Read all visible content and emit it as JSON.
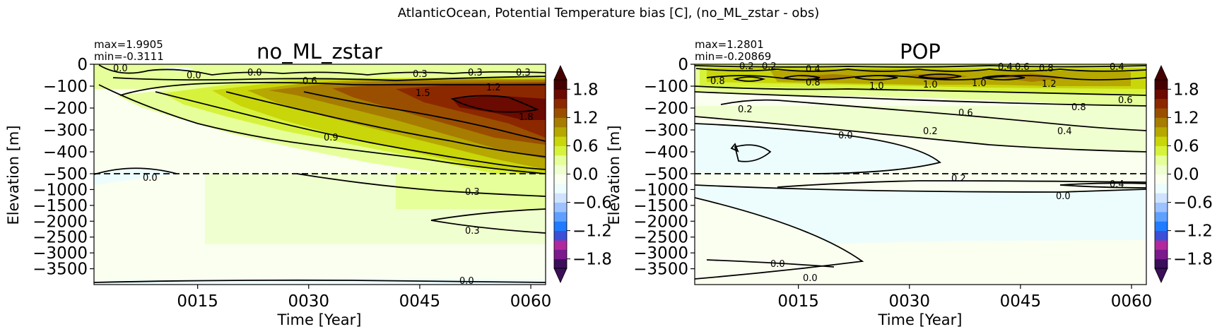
{
  "figure": {
    "suptitle": "AtlanticOcean, Potential Temperature bias [C], (no_ML_zstar - obs)"
  },
  "colors": {
    "colormap": [
      "#3b0f5a",
      "#7a1a8c",
      "#b02a9e",
      "#3b4fd9",
      "#1f7bff",
      "#5ea0ff",
      "#9cc2ff",
      "#cfe3ff",
      "#edfdfd",
      "#fafff0",
      "#f0ffd0",
      "#e6ff9a",
      "#d7f23c",
      "#c9d60a",
      "#b6a800",
      "#a67d00",
      "#9a4f00",
      "#8c2800",
      "#6a0a00",
      "#450000"
    ]
  },
  "chart_data": [
    {
      "type": "heatmap",
      "subtype": "hovmoller-contour",
      "title": "no_ML_zstar",
      "stats": {
        "max": "max=1.9905",
        "min": "min=-0.3111"
      },
      "xlabel": "Time [Year]",
      "ylabel": "Elevation [m]",
      "xlim": [
        1,
        62
      ],
      "xticks": [
        15,
        30,
        45,
        60
      ],
      "xticklabels": [
        "0015",
        "0030",
        "0045",
        "0060"
      ],
      "yticklabels_upper": [
        "0",
        "−100",
        "−200",
        "−300",
        "−400",
        "−500"
      ],
      "yticklabels_lower": [
        "−1000",
        "−1500",
        "−2000",
        "−2500",
        "−3000",
        "−3500"
      ],
      "upper_depth_range": [
        -500,
        0
      ],
      "lower_depth_range": [
        -4000,
        -500
      ],
      "section_divider_depth": -500,
      "colorbar": {
        "vmin": -2.0,
        "vmax": 2.0,
        "ticks": [
          -1.8,
          -1.2,
          -0.6,
          0.0,
          0.6,
          1.2,
          1.8
        ],
        "ticklabels": [
          "−1.8",
          "−1.2",
          "−0.6",
          "0.0",
          "0.6",
          "1.2",
          "1.8"
        ]
      },
      "contour_labels": [
        "0.0",
        "0.0",
        "0.0",
        "0.3",
        "0.3",
        "0.3",
        "0.6",
        "1.5",
        "1.2",
        "1.8",
        "0.9",
        "0.0",
        "0.3",
        "0.3",
        "0.0"
      ],
      "approx_field_by_decade": [
        {
          "year": 5,
          "upper": 0.1,
          "lower": 0.05
        },
        {
          "year": 15,
          "upper": 0.6,
          "lower": 0.15
        },
        {
          "year": 25,
          "upper": 0.9,
          "lower": 0.2
        },
        {
          "year": 35,
          "upper": 1.2,
          "lower": 0.3
        },
        {
          "year": 45,
          "upper": 1.5,
          "lower": 0.35
        },
        {
          "year": 55,
          "upper": 1.9,
          "lower": 0.4
        }
      ]
    },
    {
      "type": "heatmap",
      "subtype": "hovmoller-contour",
      "title": "POP",
      "stats": {
        "max": "max=1.2801",
        "min": "min=-0.20869"
      },
      "xlabel": "Time [Year]",
      "ylabel": "Elevation [m]",
      "xlim": [
        1,
        62
      ],
      "xticks": [
        15,
        30,
        45,
        60
      ],
      "xticklabels": [
        "0015",
        "0030",
        "0045",
        "0060"
      ],
      "yticklabels_upper": [
        "0",
        "−100",
        "−200",
        "−300",
        "−400",
        "−500"
      ],
      "yticklabels_lower": [
        "−1000",
        "−1500",
        "−2000",
        "−2500",
        "−3000",
        "−3500"
      ],
      "upper_depth_range": [
        -500,
        0
      ],
      "lower_depth_range": [
        -4000,
        -500
      ],
      "section_divider_depth": -500,
      "colorbar": {
        "vmin": -2.0,
        "vmax": 2.0,
        "ticks": [
          -1.8,
          -1.2,
          -0.6,
          0.0,
          0.6,
          1.2,
          1.8
        ],
        "ticklabels": [
          "−1.8",
          "−1.2",
          "−0.6",
          "0.0",
          "0.6",
          "1.2",
          "1.8"
        ]
      },
      "contour_labels": [
        "0.2",
        "0.2",
        "0.4",
        "0.8",
        "0.8",
        "0.8",
        "1.0",
        "1.0",
        "1.0",
        "1.2",
        "0.4",
        "0.6",
        "0.4",
        "0.8",
        "0.6",
        "0.2",
        "0.6",
        "0.2",
        "0.0",
        "0.4",
        "0.2",
        "0.4",
        "0.0",
        "0.0",
        "0.0"
      ],
      "approx_field_by_decade": [
        {
          "year": 5,
          "upper": 0.9,
          "lower": 0.0
        },
        {
          "year": 15,
          "upper": 1.0,
          "lower": 0.0
        },
        {
          "year": 25,
          "upper": 1.0,
          "lower": -0.05
        },
        {
          "year": 35,
          "upper": 1.1,
          "lower": -0.05
        },
        {
          "year": 45,
          "upper": 1.2,
          "lower": 0.0
        },
        {
          "year": 55,
          "upper": 1.0,
          "lower": 0.1
        }
      ]
    }
  ]
}
